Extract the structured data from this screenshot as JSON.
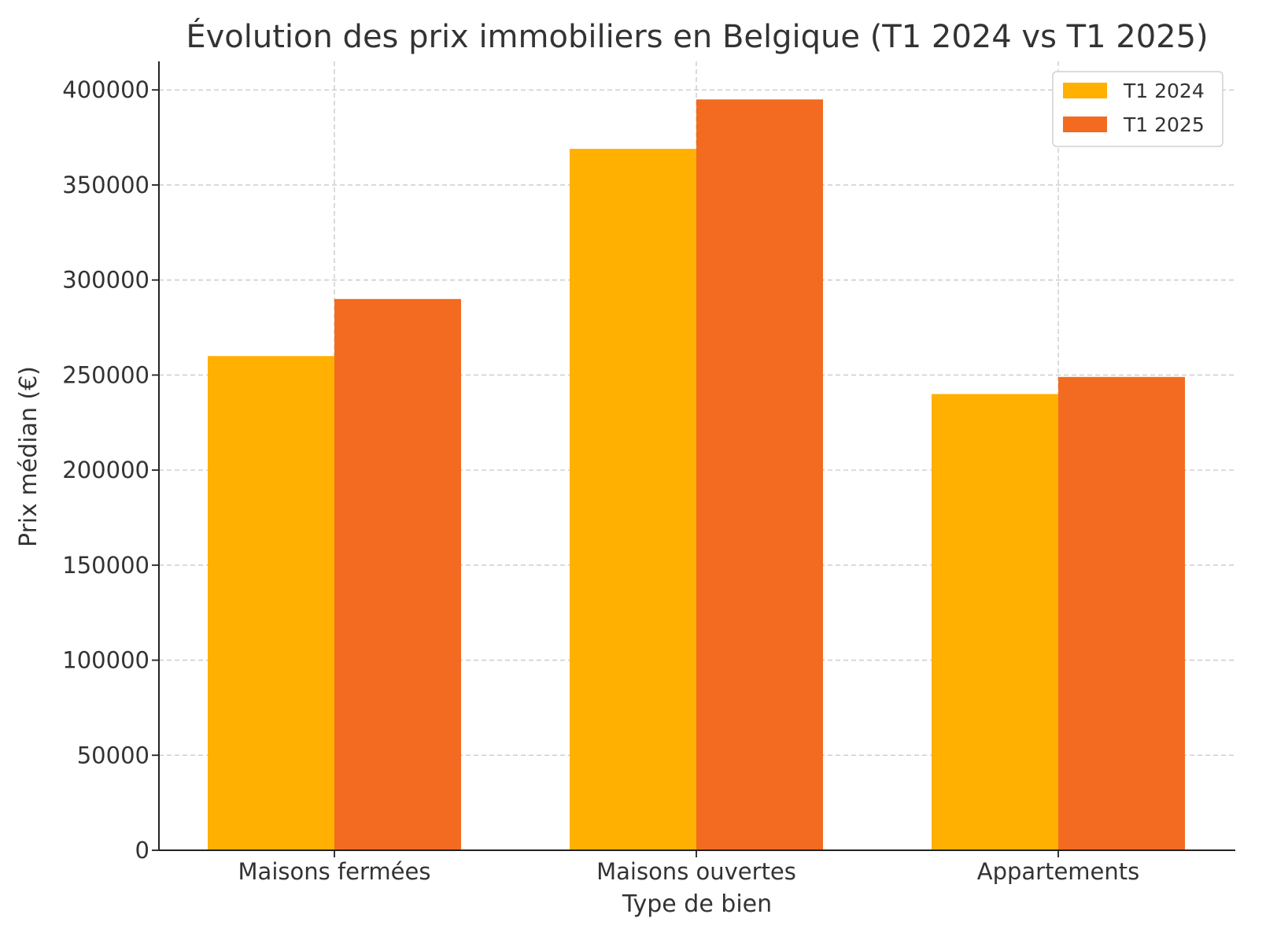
{
  "chart_data": {
    "type": "bar",
    "title": "Évolution des prix immobiliers en Belgique (T1 2024 vs T1 2025)",
    "xlabel": "Type de bien",
    "ylabel": "Prix médian (€)",
    "categories": [
      "Maisons fermées",
      "Maisons ouvertes",
      "Appartements"
    ],
    "series": [
      {
        "name": "T1 2024",
        "color": "#FFB000",
        "values": [
          260000,
          369000,
          240000
        ]
      },
      {
        "name": "T1 2025",
        "color": "#F26B21",
        "values": [
          290000,
          395000,
          249000
        ]
      }
    ],
    "ylim": [
      0,
      415000
    ],
    "yticks": [
      0,
      50000,
      100000,
      150000,
      200000,
      250000,
      300000,
      350000,
      400000
    ],
    "grid": true,
    "legend_position": "top-right"
  }
}
